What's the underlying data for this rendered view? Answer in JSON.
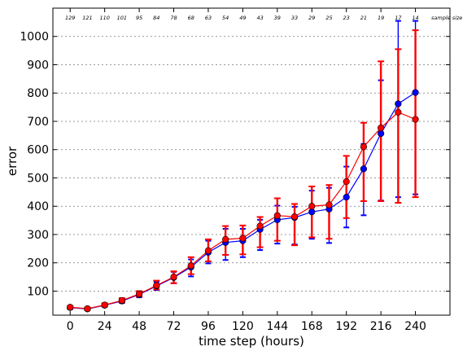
{
  "chart_data": {
    "type": "line",
    "title": "",
    "xlabel": "time step (hours)",
    "ylabel": "error",
    "xlim": [
      -12,
      264
    ],
    "ylim": [
      15,
      1100
    ],
    "xticks": [
      0,
      24,
      48,
      72,
      96,
      120,
      144,
      168,
      192,
      216,
      240
    ],
    "yticks": [
      100,
      200,
      300,
      400,
      500,
      600,
      700,
      800,
      900,
      1000
    ],
    "grid": "horizontal dotted",
    "sample_size_label": "sample size",
    "sample_sizes": [
      {
        "x": 0,
        "label": "129"
      },
      {
        "x": 12,
        "label": "121"
      },
      {
        "x": 24,
        "label": "110"
      },
      {
        "x": 36,
        "label": "101"
      },
      {
        "x": 48,
        "label": "95"
      },
      {
        "x": 60,
        "label": "84"
      },
      {
        "x": 72,
        "label": "78"
      },
      {
        "x": 84,
        "label": "68"
      },
      {
        "x": 96,
        "label": "63"
      },
      {
        "x": 108,
        "label": "54"
      },
      {
        "x": 120,
        "label": "49"
      },
      {
        "x": 132,
        "label": "43"
      },
      {
        "x": 144,
        "label": "39"
      },
      {
        "x": 156,
        "label": "33"
      },
      {
        "x": 168,
        "label": "29"
      },
      {
        "x": 180,
        "label": "25"
      },
      {
        "x": 192,
        "label": "23"
      },
      {
        "x": 204,
        "label": "21"
      },
      {
        "x": 216,
        "label": "19"
      },
      {
        "x": 228,
        "label": "17"
      },
      {
        "x": 240,
        "label": "14"
      }
    ],
    "x": [
      0,
      12,
      24,
      36,
      48,
      60,
      72,
      84,
      96,
      108,
      120,
      132,
      144,
      156,
      168,
      180,
      192,
      204,
      216,
      228,
      240
    ],
    "series": [
      {
        "color": "#0000ff",
        "values": [
          42,
          37,
          50,
          65,
          88,
          118,
          148,
          185,
          237,
          272,
          278,
          318,
          352,
          360,
          380,
          390,
          432,
          532,
          657,
          762,
          802
        ],
        "err_low": [
          36,
          33,
          45,
          58,
          78,
          104,
          128,
          152,
          198,
          210,
          220,
          245,
          268,
          265,
          285,
          270,
          325,
          368,
          420,
          432,
          442
        ],
        "err_high": [
          47,
          42,
          56,
          73,
          98,
          132,
          168,
          212,
          278,
          320,
          320,
          352,
          402,
          398,
          455,
          465,
          540,
          620,
          845,
          1055,
          1055
        ]
      },
      {
        "color": "#ff0000",
        "values": [
          43,
          38,
          51,
          67,
          90,
          120,
          150,
          190,
          243,
          283,
          287,
          330,
          367,
          363,
          400,
          405,
          487,
          610,
          677,
          732,
          707
        ],
        "err_low": [
          38,
          34,
          46,
          60,
          80,
          106,
          128,
          160,
          205,
          228,
          230,
          255,
          278,
          262,
          290,
          285,
          358,
          418,
          418,
          412,
          432
        ],
        "err_high": [
          47,
          42,
          57,
          75,
          100,
          137,
          170,
          220,
          283,
          330,
          332,
          362,
          428,
          408,
          470,
          475,
          578,
          695,
          912,
          955,
          1022
        ]
      }
    ]
  }
}
